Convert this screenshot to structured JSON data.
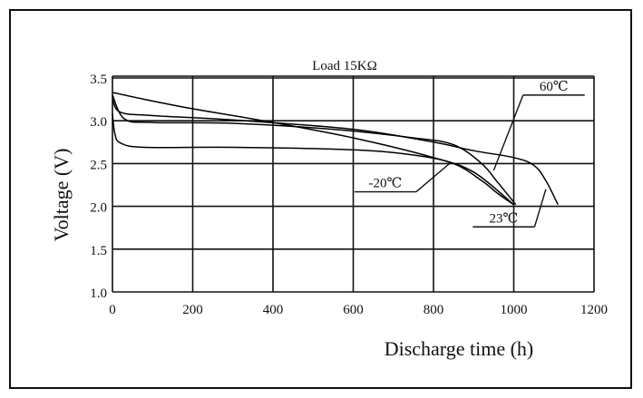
{
  "chart_data": {
    "type": "line",
    "title": "Load 15KΩ",
    "xlabel": "Discharge time (h)",
    "ylabel": "Voltage (V)",
    "xlim": [
      0,
      1200
    ],
    "ylim": [
      1.0,
      3.5
    ],
    "xticks": [
      0,
      200,
      400,
      600,
      800,
      1000,
      1200
    ],
    "yticks": [
      1.0,
      1.5,
      2.0,
      2.5,
      3.0,
      3.5
    ],
    "xtick_labels": [
      "0",
      "200",
      "400",
      "600",
      "800",
      "1000",
      "1200"
    ],
    "ytick_labels": [
      "1.0",
      "1.5",
      "2.0",
      "2.5",
      "3.0",
      "3.5"
    ],
    "grid": true,
    "series": [
      {
        "name": "60℃",
        "color": "#000000",
        "points": [
          [
            0,
            3.33
          ],
          [
            80,
            3.25
          ],
          [
            200,
            3.14
          ],
          [
            400,
            2.98
          ],
          [
            600,
            2.8
          ],
          [
            800,
            2.57
          ],
          [
            900,
            2.4
          ],
          [
            1000,
            2.02
          ]
        ]
      },
      {
        "name": "23℃",
        "color": "#000000",
        "points": [
          [
            0,
            3.25
          ],
          [
            20,
            3.1
          ],
          [
            100,
            3.06
          ],
          [
            300,
            3.01
          ],
          [
            600,
            2.9
          ],
          [
            800,
            2.75
          ],
          [
            900,
            2.65
          ],
          [
            1000,
            2.57
          ],
          [
            1050,
            2.48
          ],
          [
            1080,
            2.3
          ],
          [
            1110,
            2.02
          ]
        ]
      },
      {
        "name": "-20℃",
        "color": "#000000",
        "points": [
          [
            0,
            3.08
          ],
          [
            6,
            2.85
          ],
          [
            20,
            2.74
          ],
          [
            80,
            2.69
          ],
          [
            300,
            2.69
          ],
          [
            600,
            2.66
          ],
          [
            750,
            2.6
          ],
          [
            850,
            2.5
          ],
          [
            920,
            2.3
          ],
          [
            960,
            2.15
          ],
          [
            1000,
            2.02
          ]
        ]
      },
      {
        "name": "",
        "color": "#000000",
        "points": [
          [
            0,
            3.3
          ],
          [
            30,
            3.02
          ],
          [
            100,
            2.98
          ],
          [
            300,
            2.97
          ],
          [
            550,
            2.9
          ],
          [
            750,
            2.8
          ],
          [
            850,
            2.72
          ],
          [
            920,
            2.5
          ],
          [
            960,
            2.28
          ],
          [
            1005,
            2.02
          ]
        ]
      }
    ],
    "annotations": [
      {
        "label": "60℃",
        "text_at": [
          1100,
          3.3
        ],
        "pointer_to": [
          950,
          2.42
        ]
      },
      {
        "label": "-20℃",
        "text_at": [
          680,
          2.17
        ],
        "pointer_to": [
          840,
          2.5
        ]
      },
      {
        "label": "23℃",
        "text_at": [
          975,
          1.76
        ],
        "pointer_to": [
          1080,
          2.2
        ]
      }
    ]
  }
}
